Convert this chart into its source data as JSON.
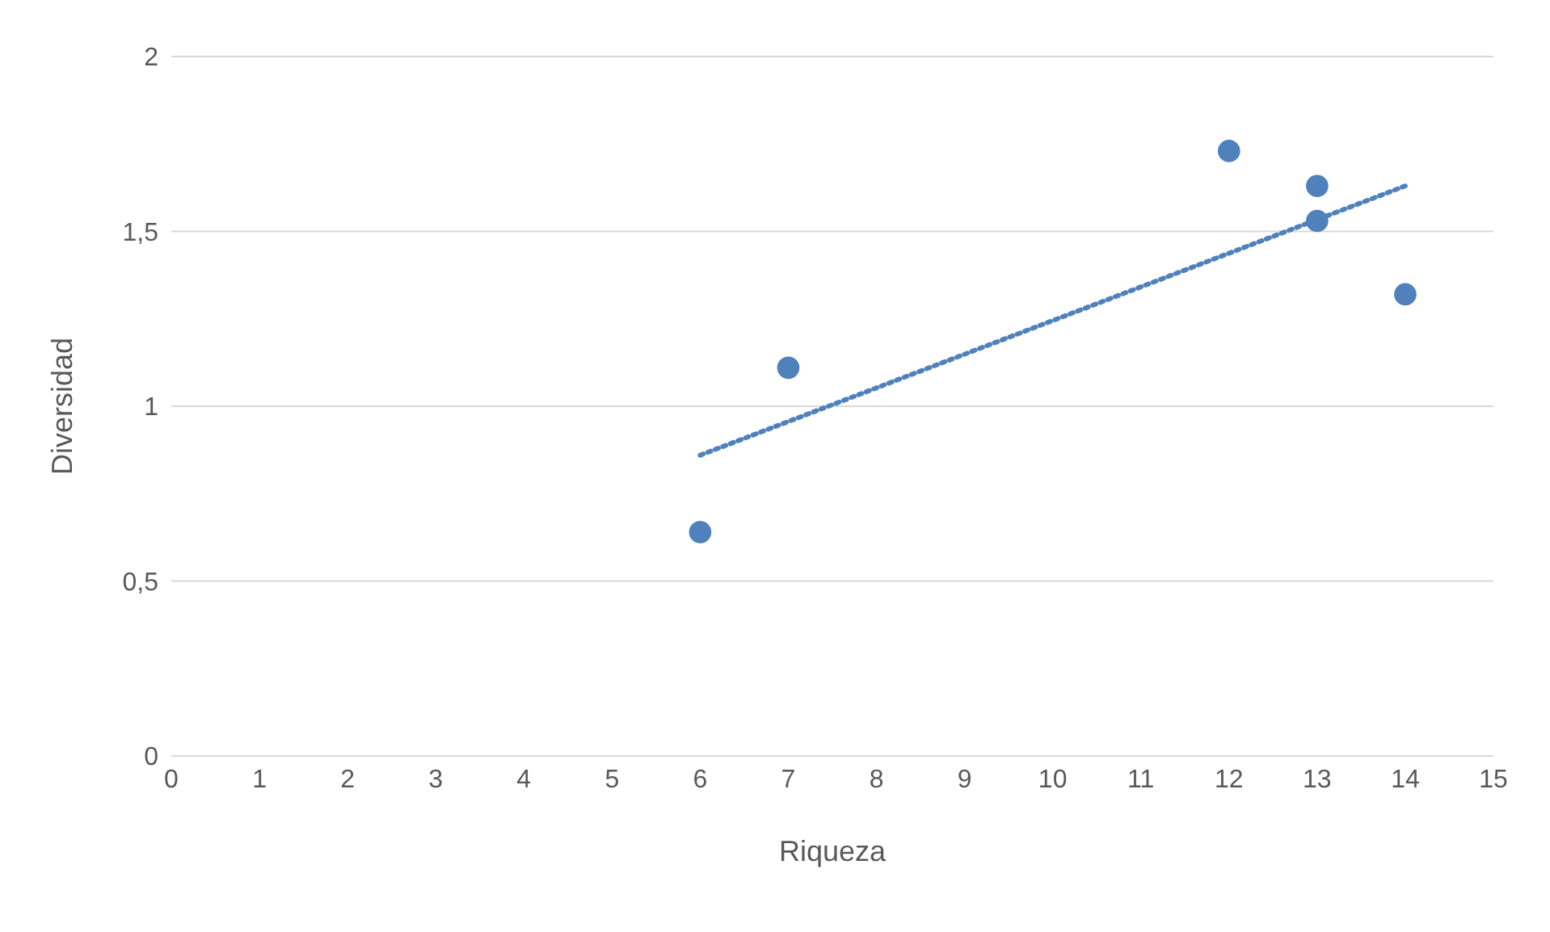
{
  "chart_data": {
    "type": "scatter",
    "xlabel": "Riqueza",
    "ylabel": "Diversidad",
    "x": [
      6,
      7,
      12,
      13,
      13,
      14
    ],
    "series": [
      {
        "color": "#4f81bd",
        "values": [
          0.64,
          1.11,
          1.73,
          1.63,
          1.53,
          1.32
        ]
      },
      {
        "type": "line",
        "color": "#4f81bd",
        "x": [
          6,
          14
        ],
        "values": [
          0.86,
          1.63
        ],
        "line_style": "dotted",
        "marker": "none"
      }
    ],
    "xlim": [
      0,
      15
    ],
    "xticks": [
      0,
      1,
      2,
      3,
      4,
      5,
      6,
      7,
      8,
      9,
      10,
      11,
      12,
      13,
      14,
      15
    ],
    "ylim": [
      0,
      2
    ],
    "yticks": [
      0,
      {
        "value": 0.5,
        "label": "0,5"
      },
      1,
      {
        "value": 1.5,
        "label": "1,5"
      },
      2
    ],
    "grid": "y",
    "marker": "circle"
  }
}
